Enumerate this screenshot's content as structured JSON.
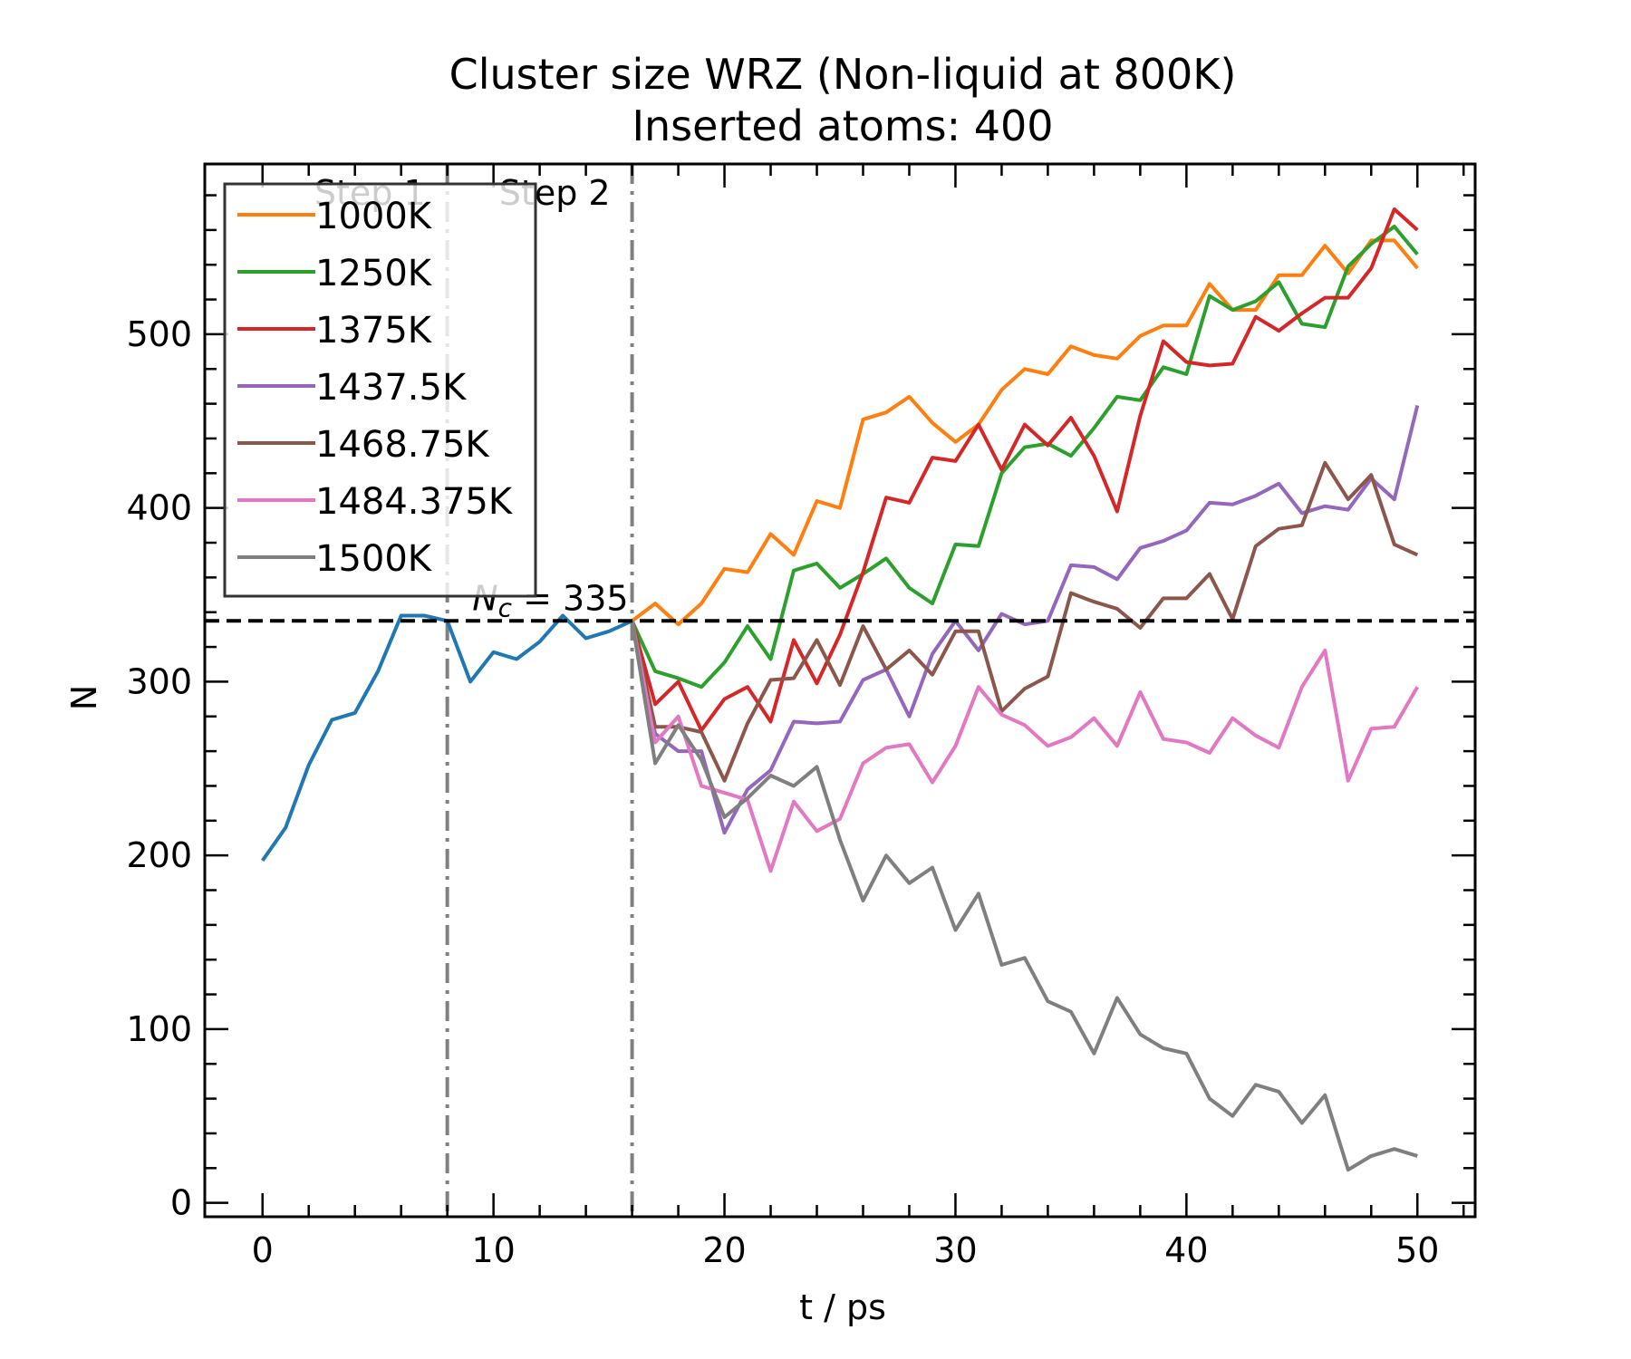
{
  "chart_data": {
    "type": "line",
    "title": "Cluster size WRZ (Non-liquid at 800K)",
    "subtitle": "Inserted atoms: 400",
    "xlabel": "t / ps",
    "ylabel": "N",
    "xlim": [
      -2.5,
      52.5
    ],
    "ylim": [
      -8,
      598
    ],
    "xticks": [
      0,
      10,
      20,
      30,
      40,
      50
    ],
    "yticks": [
      0,
      100,
      200,
      300,
      400,
      500
    ],
    "grid": false,
    "legend_placement": "upper-left",
    "hline": {
      "y": 335,
      "label_prefix": "N",
      "label_sub": "c",
      "label_suffix": " = 335",
      "color": "#000000"
    },
    "vlines": [
      {
        "x": 8,
        "label": "Step 1",
        "color": "#808080"
      },
      {
        "x": 16,
        "label": "Step 2",
        "color": "#808080"
      }
    ],
    "base_series": {
      "color": "#1f77b4",
      "x": [
        0,
        1,
        2,
        3,
        4,
        5,
        6,
        7,
        8,
        9,
        10,
        11,
        12,
        13,
        14,
        15,
        16
      ],
      "values": [
        197,
        216,
        252,
        278,
        282,
        306,
        338,
        338,
        335,
        300,
        317,
        313,
        323,
        338,
        325,
        329,
        335
      ]
    },
    "series": [
      {
        "name": "1000K",
        "color": "#ff7f0e",
        "x": [
          16,
          17,
          18,
          19,
          20,
          21,
          22,
          23,
          24,
          25,
          26,
          27,
          28,
          29,
          30,
          31,
          32,
          33,
          34,
          35,
          36,
          37,
          38,
          39,
          40,
          41,
          42,
          43,
          44,
          45,
          46,
          47,
          48,
          49,
          50
        ],
        "values": [
          335,
          345,
          333,
          345,
          365,
          363,
          385,
          373,
          404,
          400,
          451,
          455,
          464,
          449,
          438,
          448,
          468,
          480,
          477,
          493,
          488,
          486,
          499,
          505,
          505,
          529,
          514,
          514,
          534,
          534,
          551,
          535,
          554,
          554,
          538
        ]
      },
      {
        "name": "1250K",
        "color": "#2ca02c",
        "x": [
          16,
          17,
          18,
          19,
          20,
          21,
          22,
          23,
          24,
          25,
          26,
          27,
          28,
          29,
          30,
          31,
          32,
          33,
          34,
          35,
          36,
          37,
          38,
          39,
          40,
          41,
          42,
          43,
          44,
          45,
          46,
          47,
          48,
          49,
          50
        ],
        "values": [
          335,
          306,
          302,
          297,
          311,
          332,
          313,
          364,
          368,
          354,
          362,
          371,
          354,
          345,
          379,
          378,
          420,
          435,
          437,
          430,
          446,
          464,
          462,
          481,
          477,
          522,
          514,
          519,
          530,
          506,
          504,
          539,
          552,
          562,
          546
        ]
      },
      {
        "name": "1375K",
        "color": "#d62728",
        "x": [
          16,
          17,
          18,
          19,
          20,
          21,
          22,
          23,
          24,
          25,
          26,
          27,
          28,
          29,
          30,
          31,
          32,
          33,
          34,
          35,
          36,
          37,
          38,
          39,
          40,
          41,
          42,
          43,
          44,
          45,
          46,
          47,
          48,
          49,
          50
        ],
        "values": [
          335,
          287,
          300,
          272,
          290,
          297,
          277,
          324,
          299,
          327,
          363,
          406,
          403,
          429,
          427,
          448,
          422,
          448,
          436,
          452,
          430,
          398,
          453,
          496,
          484,
          482,
          483,
          510,
          502,
          512,
          521,
          521,
          538,
          572,
          560
        ]
      },
      {
        "name": "1437.5K",
        "color": "#9467bd",
        "x": [
          16,
          17,
          18,
          19,
          20,
          21,
          22,
          23,
          24,
          25,
          26,
          27,
          28,
          29,
          30,
          31,
          32,
          33,
          34,
          35,
          36,
          37,
          38,
          39,
          40,
          41,
          42,
          43,
          44,
          45,
          46,
          47,
          48,
          49,
          50
        ],
        "values": [
          335,
          270,
          260,
          260,
          213,
          238,
          249,
          277,
          276,
          277,
          301,
          307,
          280,
          316,
          335,
          318,
          339,
          333,
          335,
          367,
          366,
          359,
          377,
          381,
          387,
          403,
          402,
          407,
          414,
          397,
          401,
          399,
          417,
          405,
          459
        ]
      },
      {
        "name": "1468.75K",
        "color": "#8c564b",
        "x": [
          16,
          17,
          18,
          19,
          20,
          21,
          22,
          23,
          24,
          25,
          26,
          27,
          28,
          29,
          30,
          31,
          32,
          33,
          34,
          35,
          36,
          37,
          38,
          39,
          40,
          41,
          42,
          43,
          44,
          45,
          46,
          47,
          48,
          49,
          50
        ],
        "values": [
          335,
          274,
          274,
          271,
          243,
          276,
          301,
          302,
          324,
          298,
          332,
          307,
          318,
          304,
          329,
          329,
          283,
          296,
          303,
          351,
          346,
          342,
          331,
          348,
          348,
          362,
          336,
          378,
          388,
          390,
          426,
          405,
          419,
          379,
          373
        ]
      },
      {
        "name": "1484.375K",
        "color": "#e377c2",
        "x": [
          16,
          17,
          18,
          19,
          20,
          21,
          22,
          23,
          24,
          25,
          26,
          27,
          28,
          29,
          30,
          31,
          32,
          33,
          34,
          35,
          36,
          37,
          38,
          39,
          40,
          41,
          42,
          43,
          44,
          45,
          46,
          47,
          48,
          49,
          50
        ],
        "values": [
          335,
          265,
          280,
          240,
          236,
          232,
          191,
          231,
          214,
          221,
          253,
          262,
          264,
          242,
          263,
          297,
          281,
          275,
          263,
          268,
          279,
          263,
          294,
          267,
          265,
          259,
          279,
          269,
          262,
          297,
          318,
          243,
          273,
          274,
          297
        ]
      },
      {
        "name": "1500K",
        "color": "#7f7f7f",
        "x": [
          16,
          17,
          18,
          19,
          20,
          21,
          22,
          23,
          24,
          25,
          26,
          27,
          28,
          29,
          30,
          31,
          32,
          33,
          34,
          35,
          36,
          37,
          38,
          39,
          40,
          41,
          42,
          43,
          44,
          45,
          46,
          47,
          48,
          49,
          50
        ],
        "values": [
          335,
          253,
          275,
          255,
          222,
          233,
          246,
          240,
          251,
          209,
          174,
          200,
          184,
          193,
          157,
          178,
          137,
          141,
          116,
          110,
          86,
          118,
          97,
          89,
          86,
          60,
          50,
          68,
          64,
          46,
          62,
          19,
          27,
          31,
          27
        ]
      }
    ]
  }
}
